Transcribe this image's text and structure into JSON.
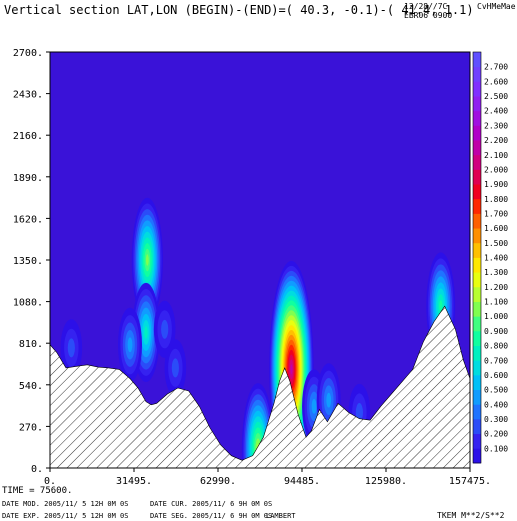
{
  "header": {
    "title": "Vertical section LAT,LON (BEGIN)-(END)=( 40.3, -0.1)-( 41.4,  1.1)",
    "date_code": "12/28//7C",
    "right_tag": "CvHMeMae",
    "model_run": "EBR06 0900"
  },
  "footer": {
    "time": "TIME =   75600.",
    "date_mod": "DATE MOD. 2005/11/ 5  12H 0M 0S",
    "date_cur": "DATE CUR. 2005/11/ 6   9H 0M 0S",
    "date_exp": "DATE EXP. 2005/11/ 5  12H 0M 0S",
    "date_seg": "DATE SEG. 2005/11/ 6   9H 0M 0S",
    "projection": "LAMBERT",
    "field": "TKEM M**2/S**2"
  },
  "colors": {
    "background_field": "#3a12d8",
    "terrain_fill": "#ffffff",
    "terrain_hatch": "#333333",
    "colorbar": [
      "#2c10e8",
      "#3522f0",
      "#2b4cf8",
      "#1f74ff",
      "#109cff",
      "#00c0f8",
      "#00dce0",
      "#00f0c0",
      "#10ffa0",
      "#40ff80",
      "#80ff50",
      "#b8ff30",
      "#e8ff10",
      "#ffe800",
      "#ffc000",
      "#ff9000",
      "#ff6000",
      "#ff2800",
      "#f00020",
      "#e00050",
      "#d00080",
      "#c000a8",
      "#b000c8",
      "#a010e0",
      "#9020f0",
      "#8030ff",
      "#7040ff",
      "#6050ff"
    ]
  },
  "chart_data": {
    "type": "heatmap",
    "title": "Vertical section LAT,LON (BEGIN)-(END)=( 40.3, -0.1)-( 41.4,  1.1)",
    "variable": "TKEM",
    "units": "M**2/S**2",
    "x_ticks": [
      "0.",
      "31495.",
      "62990.",
      "94485.",
      "125980.",
      "157475."
    ],
    "y_ticks": [
      "0.",
      "270.",
      "540.",
      "810.",
      "1080.",
      "1350.",
      "1620.",
      "1890.",
      "2160.",
      "2430.",
      "2700."
    ],
    "xlim": [
      0,
      157475
    ],
    "ylim": [
      0,
      2700
    ],
    "colorbar_levels": [
      "0.100",
      "0.200",
      "0.300",
      "0.400",
      "0.500",
      "0.600",
      "0.700",
      "0.800",
      "0.900",
      "1.000",
      "1.100",
      "1.200",
      "1.300",
      "1.400",
      "1.500",
      "1.600",
      "1.700",
      "1.800",
      "1.900",
      "2.000",
      "2.100",
      "2.200",
      "2.300",
      "2.400",
      "2.500",
      "2.600",
      "2.700"
    ],
    "terrain_profile": {
      "x": [
        0,
        2500,
        6000,
        10000,
        14000,
        18000,
        22000,
        26000,
        30000,
        33000,
        36000,
        38000,
        40000,
        44000,
        48000,
        52000,
        56000,
        60000,
        64000,
        68000,
        72000,
        76000,
        80000,
        84000,
        86000,
        88000,
        90000,
        93000,
        96000,
        98000,
        101000,
        104000,
        108000,
        112000,
        116000,
        120000,
        124000,
        128000,
        132000,
        136000,
        140000,
        144000,
        148000,
        152000,
        155000,
        157475
      ],
      "y": [
        800,
        750,
        650,
        660,
        670,
        655,
        650,
        640,
        580,
        520,
        430,
        410,
        420,
        480,
        520,
        500,
        400,
        260,
        150,
        80,
        50,
        80,
        200,
        420,
        560,
        650,
        560,
        350,
        200,
        240,
        380,
        300,
        420,
        360,
        320,
        310,
        400,
        480,
        560,
        640,
        820,
        950,
        1050,
        900,
        700,
        580
      ]
    },
    "tke_maxima": [
      {
        "x": 36500,
        "y": 1350,
        "value": 1.1
      },
      {
        "x": 36000,
        "y": 880,
        "value": 0.8
      },
      {
        "x": 30000,
        "y": 800,
        "value": 0.5
      },
      {
        "x": 43000,
        "y": 900,
        "value": 0.3
      },
      {
        "x": 90500,
        "y": 640,
        "value": 2.2
      },
      {
        "x": 78000,
        "y": 120,
        "value": 1.2
      },
      {
        "x": 146500,
        "y": 1050,
        "value": 0.9
      },
      {
        "x": 99000,
        "y": 400,
        "value": 0.5
      },
      {
        "x": 104500,
        "y": 440,
        "value": 0.5
      },
      {
        "x": 116000,
        "y": 360,
        "value": 0.3
      },
      {
        "x": 8000,
        "y": 780,
        "value": 0.3
      },
      {
        "x": 47000,
        "y": 650,
        "value": 0.3
      }
    ]
  }
}
